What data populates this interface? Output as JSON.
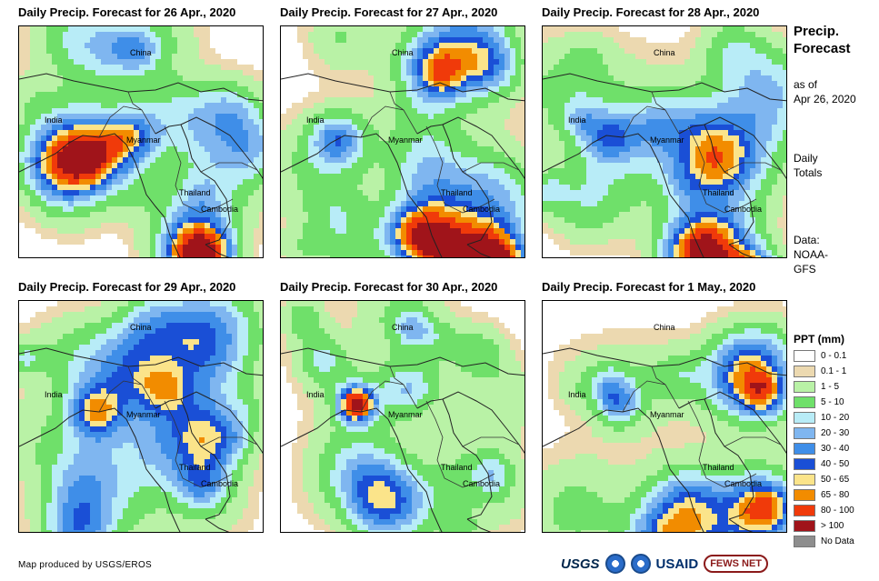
{
  "panels": [
    {
      "title": "Daily Precip. Forecast for 26 Apr., 2020"
    },
    {
      "title": "Daily Precip. Forecast for 27 Apr., 2020"
    },
    {
      "title": "Daily Precip. Forecast for 28 Apr., 2020"
    },
    {
      "title": "Daily Precip. Forecast for 29 Apr., 2020"
    },
    {
      "title": "Daily Precip. Forecast for 30 Apr., 2020"
    },
    {
      "title": "Daily Precip. Forecast for 1 May., 2020"
    }
  ],
  "map_labels": {
    "china": "China",
    "india": "India",
    "myanmar": "Myanmar",
    "thailand": "Thailand",
    "cambodia": "Cambodia"
  },
  "side": {
    "title_line1": "Precip.",
    "title_line2": "Forecast",
    "asof_line1": "as of",
    "asof_line2": "Apr 26, 2020",
    "totals_line1": "Daily",
    "totals_line2": "Totals",
    "data_line1": "Data:",
    "data_line2": "NOAA-",
    "data_line3": "GFS"
  },
  "legend": {
    "title": "PPT (mm)",
    "items": [
      {
        "label": "0 - 0.1",
        "color": "#ffffff"
      },
      {
        "label": "0.1 - 1",
        "color": "#ecd9b0"
      },
      {
        "label": "1 - 5",
        "color": "#b9f2a6"
      },
      {
        "label": "5 - 10",
        "color": "#6fe06a"
      },
      {
        "label": "10 - 20",
        "color": "#b8ecf7"
      },
      {
        "label": "20 - 30",
        "color": "#7fb6f0"
      },
      {
        "label": "30 - 40",
        "color": "#3f8ee8"
      },
      {
        "label": "40 - 50",
        "color": "#1a4fd6"
      },
      {
        "label": "50 - 65",
        "color": "#fbe48a"
      },
      {
        "label": "65 - 80",
        "color": "#f28c00"
      },
      {
        "label": "80 - 100",
        "color": "#f03a0a"
      },
      {
        "label": "> 100",
        "color": "#a0141a"
      },
      {
        "label": "No Data",
        "color": "#8e8e8e"
      }
    ]
  },
  "credit": "Map produced by USGS/EROS",
  "logos": {
    "usgs": "USGS",
    "usaid": "USAID",
    "fews": "FEWS NET"
  }
}
